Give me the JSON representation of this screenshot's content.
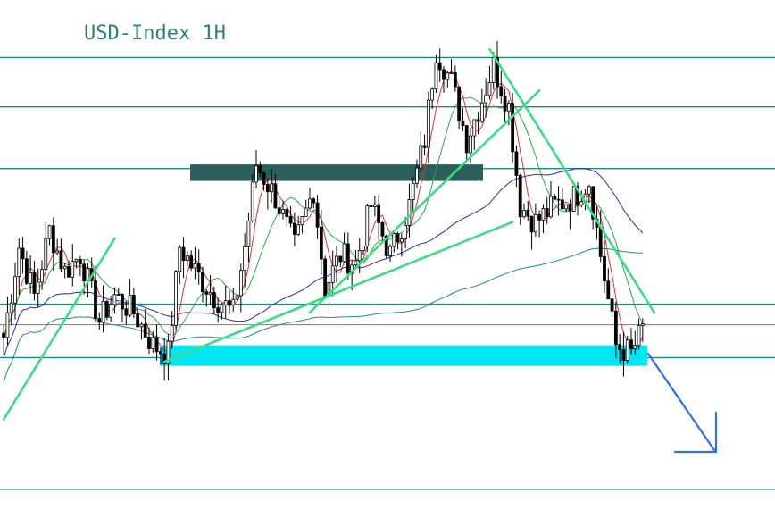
{
  "chart_data": {
    "type": "candlestick",
    "title": "USD-Index 1H",
    "colors": {
      "title": "#2f7f7a",
      "level_lines": "#1b8a85",
      "trend_lines": "#3ddc84",
      "current_price": "#d9534f",
      "resistance_zone": "#2a5f5c",
      "support_zone": "#00e5f2",
      "candles": "#000000",
      "ma_red": "#e03030",
      "ma_green": "#2ea84a",
      "ma_blue": "#2a2ab8",
      "ma_teal": "#1d8c8a",
      "arrow": "#2f6fe0"
    },
    "horizontal_levels": [
      101.0,
      100.4,
      99.65,
      98.0,
      97.35,
      95.75
    ],
    "current_price_level": 97.75,
    "resistance_zone": {
      "from": 99.5,
      "to": 99.7
    },
    "support_zone": {
      "from": 97.25,
      "to": 97.5
    },
    "y_range": [
      95.4,
      101.7
    ],
    "bar_count": 168,
    "trend_lines": [
      {
        "p1": {
          "bar": 0,
          "price": 96.6
        },
        "p2": {
          "bar": 29,
          "price": 98.8
        }
      },
      {
        "p1": {
          "bar": 80,
          "price": 97.9
        },
        "p2": {
          "bar": 140,
          "price": 100.6
        }
      },
      {
        "p1": {
          "bar": 42,
          "price": 97.3
        },
        "p2": {
          "bar": 133,
          "price": 99.0
        }
      },
      {
        "p1": {
          "bar": 127,
          "price": 101.1
        },
        "p2": {
          "bar": 170,
          "price": 97.9
        }
      }
    ],
    "direction_arrow": "down",
    "price_path": [
      [
        0,
        97.6
      ],
      [
        4,
        98.7
      ],
      [
        8,
        98.1
      ],
      [
        12,
        98.9
      ],
      [
        16,
        98.4
      ],
      [
        20,
        98.6
      ],
      [
        25,
        97.8
      ],
      [
        29,
        98.1
      ],
      [
        34,
        97.9
      ],
      [
        39,
        97.5
      ],
      [
        43,
        97.4
      ],
      [
        46,
        98.7
      ],
      [
        50,
        98.4
      ],
      [
        55,
        98.1
      ],
      [
        60,
        97.9
      ],
      [
        63,
        98.7
      ],
      [
        66,
        99.7
      ],
      [
        71,
        99.3
      ],
      [
        76,
        98.7
      ],
      [
        81,
        99.4
      ],
      [
        84,
        98.2
      ],
      [
        88,
        98.6
      ],
      [
        92,
        98.5
      ],
      [
        96,
        99.2
      ],
      [
        101,
        98.6
      ],
      [
        106,
        99.2
      ],
      [
        110,
        100.0
      ],
      [
        113,
        101.1
      ],
      [
        117,
        100.7
      ],
      [
        121,
        100.0
      ],
      [
        125,
        100.5
      ],
      [
        128,
        100.9
      ],
      [
        132,
        100.4
      ],
      [
        135,
        99.2
      ],
      [
        139,
        99.0
      ],
      [
        144,
        99.2
      ],
      [
        149,
        99.3
      ],
      [
        153,
        99.5
      ],
      [
        156,
        98.6
      ],
      [
        160,
        97.5
      ],
      [
        164,
        97.4
      ],
      [
        167,
        97.7
      ]
    ]
  }
}
